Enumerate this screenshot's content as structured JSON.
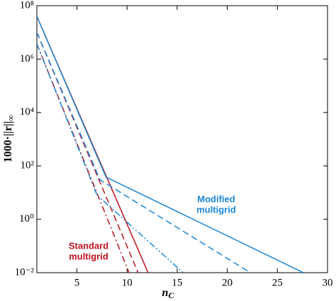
{
  "chart_data": {
    "type": "line",
    "ylog": true,
    "xlabel": "n",
    "xlabel_sub": "C",
    "ylabel": "1000·||r||",
    "ylabel_sub": "∞",
    "xlim": [
      1,
      30
    ],
    "xticks": [
      5,
      10,
      15,
      20,
      25,
      30
    ],
    "ylim": [
      0.01,
      100000000
    ],
    "yticks": [
      {
        "value": 0.01,
        "label": "10⁻²"
      },
      {
        "value": 1,
        "label": "10⁰"
      },
      {
        "value": 100,
        "label": "10²"
      },
      {
        "value": 10000,
        "label": "10⁴"
      },
      {
        "value": 1000000,
        "label": "10⁶"
      },
      {
        "value": 100000000,
        "label": "10⁸"
      }
    ],
    "series": [
      {
        "color": "#c0121e",
        "dash": "solid",
        "x": [
          1,
          12.1
        ],
        "values": [
          40000000,
          0.01
        ]
      },
      {
        "color": "#c0121e",
        "dash": "dashed",
        "x": [
          1,
          11.1
        ],
        "values": [
          10000000,
          0.01
        ]
      },
      {
        "color": "#c0121e",
        "dash": "dashdot",
        "x": [
          1,
          10.2
        ],
        "values": [
          3700000,
          0.01
        ]
      },
      {
        "color": "#1a86d8",
        "dash": "solid",
        "x": [
          1,
          7.9,
          27.6
        ],
        "values": [
          40000000,
          38,
          0.01
        ]
      },
      {
        "color": "#1a86d8",
        "dash": "dashed",
        "x": [
          1,
          7.3,
          22.3
        ],
        "values": [
          10000000,
          30,
          0.01
        ]
      },
      {
        "color": "#1a86d8",
        "dash": "dashdotdot",
        "x": [
          1,
          7,
          15.6
        ],
        "values": [
          3700000,
          8,
          0.01
        ]
      }
    ],
    "annotations": [
      {
        "text": "Modified",
        "color": "#1a86d8"
      },
      {
        "text": "multigrid",
        "color": "#1a86d8"
      },
      {
        "text": "Standard",
        "color": "#c0121e"
      },
      {
        "text": "multigrid",
        "color": "#c0121e"
      }
    ]
  }
}
